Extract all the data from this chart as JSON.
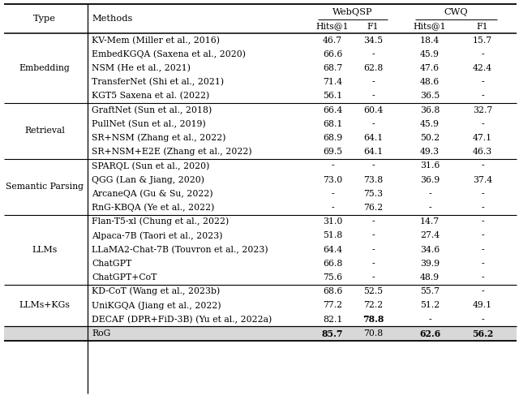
{
  "groups": [
    {
      "type": "Embedding",
      "rows": [
        [
          "KV-Mem (Miller et al., 2016)",
          "46.7",
          "34.5",
          "18.4",
          "15.7"
        ],
        [
          "EmbedKGQA (Saxena et al., 2020)",
          "66.6",
          "-",
          "45.9",
          "-"
        ],
        [
          "NSM (He et al., 2021)",
          "68.7",
          "62.8",
          "47.6",
          "42.4"
        ],
        [
          "TransferNet (Shi et al., 2021)",
          "71.4",
          "-",
          "48.6",
          "-"
        ],
        [
          "KGT5 Saxena et al. (2022)",
          "56.1",
          "-",
          "36.5",
          "-"
        ]
      ]
    },
    {
      "type": "Retrieval",
      "rows": [
        [
          "GraftNet (Sun et al., 2018)",
          "66.4",
          "60.4",
          "36.8",
          "32.7"
        ],
        [
          "PullNet (Sun et al., 2019)",
          "68.1",
          "-",
          "45.9",
          "-"
        ],
        [
          "SR+NSM (Zhang et al., 2022)",
          "68.9",
          "64.1",
          "50.2",
          "47.1"
        ],
        [
          "SR+NSM+E2E (Zhang et al., 2022)",
          "69.5",
          "64.1",
          "49.3",
          "46.3"
        ]
      ]
    },
    {
      "type": "Semantic Parsing",
      "rows": [
        [
          "SPARQL (Sun et al., 2020)",
          "-",
          "-",
          "31.6",
          "-"
        ],
        [
          "QGG (Lan & Jiang, 2020)",
          "73.0",
          "73.8",
          "36.9",
          "37.4"
        ],
        [
          "ArcaneQA (Gu & Su, 2022)",
          "-",
          "75.3",
          "-",
          "-"
        ],
        [
          "RnG-KBQA (Ye et al., 2022)",
          "-",
          "76.2",
          "-",
          "-"
        ]
      ]
    },
    {
      "type": "LLMs",
      "rows": [
        [
          "Flan-T5-xl (Chung et al., 2022)",
          "31.0",
          "-",
          "14.7",
          "-"
        ],
        [
          "Alpaca-7B (Taori et al., 2023)",
          "51.8",
          "-",
          "27.4",
          "-"
        ],
        [
          "LLaMA2-Chat-7B (Touvron et al., 2023)",
          "64.4",
          "-",
          "34.6",
          "-"
        ],
        [
          "ChatGPT",
          "66.8",
          "-",
          "39.9",
          "-"
        ],
        [
          "ChatGPT+CoT",
          "75.6",
          "-",
          "48.9",
          "-"
        ]
      ]
    },
    {
      "type": "LLMs+KGs",
      "rows": [
        [
          "KD-CoT (Wang et al., 2023b)",
          "68.6",
          "52.5",
          "55.7",
          "-"
        ],
        [
          "UniKGQA (Jiang et al., 2022)",
          "77.2",
          "72.2",
          "51.2",
          "49.1"
        ],
        [
          "DECAF (DPR+FiD-3B) (Yu et al., 2022a)",
          "82.1",
          "78.8",
          "-",
          "-"
        ]
      ]
    }
  ],
  "rog_row": [
    "RoG",
    "85.7",
    "70.8",
    "62.6",
    "56.2"
  ],
  "rog_bold": [
    true,
    false,
    true,
    true
  ],
  "decaf_bold": [
    false,
    true,
    false,
    false
  ],
  "webqsp_label": "WebQSP",
  "cwq_label": "CWQ",
  "type_header": "Type",
  "methods_header": "Methods",
  "sub_headers": [
    "Hits@1",
    "F1",
    "Hits@1",
    "F1"
  ],
  "font_size": 7.8,
  "header_font_size": 8.2,
  "bg_color": "#ffffff",
  "rog_bg": "#d8d8d8",
  "line_color": "#000000"
}
